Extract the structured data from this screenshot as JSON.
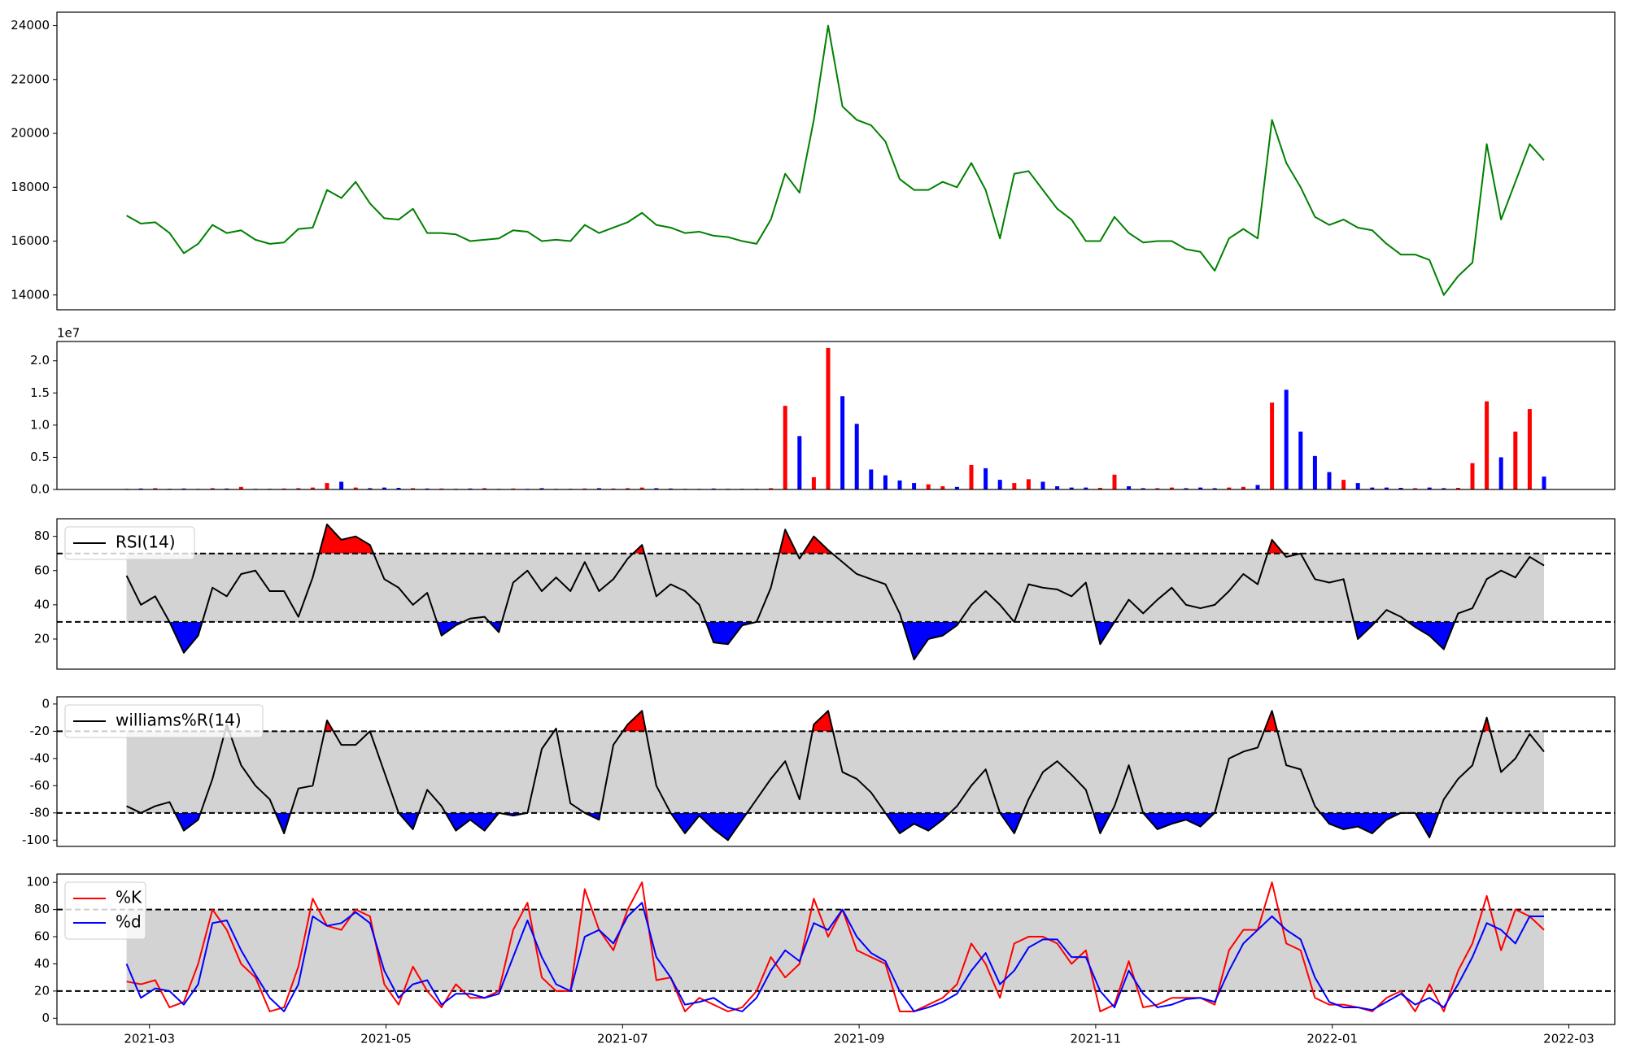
{
  "chart_data": [
    {
      "type": "line",
      "color": "green",
      "values": [
        16950,
        16650,
        16700,
        16300,
        15550,
        15900,
        16600,
        16300,
        16400,
        16050,
        15900,
        15950,
        16450,
        16500,
        17900,
        17600,
        18200,
        17400,
        16850,
        16800,
        17200,
        16300,
        16300,
        16250,
        16000,
        16050,
        16100,
        16400,
        16350,
        16000,
        16050,
        16000,
        16600,
        16300,
        16500,
        16700,
        17050,
        16600,
        16500,
        16300,
        16350,
        16200,
        16150,
        16000,
        15900,
        16800,
        18500,
        17800,
        20500,
        24000,
        21000,
        20500,
        20300,
        19700,
        18300,
        17900,
        17900,
        18200,
        18000,
        18900,
        17900,
        16100,
        18500,
        18600,
        17900,
        17200,
        16800,
        16000,
        16000,
        16900,
        16300,
        15950,
        16000,
        16000,
        15700,
        15600,
        14900,
        16100,
        16450,
        16100,
        20500,
        18900,
        18000,
        16900,
        16600,
        16800,
        16500,
        16400,
        15900,
        15500,
        15500,
        15300,
        14000,
        14700,
        15200,
        19600,
        16800,
        18200,
        19600,
        19000
      ],
      "ylim": [
        13450,
        24500
      ],
      "yticks": [
        14000,
        16000,
        18000,
        20000,
        22000,
        24000
      ]
    },
    {
      "type": "bar",
      "up_color": "red",
      "down_color": "blue",
      "offset_label": "1e7",
      "values": [
        100000,
        150000,
        200000,
        100000,
        150000,
        100000,
        200000,
        150000,
        400000,
        100000,
        100000,
        150000,
        200000,
        300000,
        1000000,
        1200000,
        300000,
        200000,
        300000,
        250000,
        200000,
        150000,
        150000,
        100000,
        150000,
        200000,
        100000,
        150000,
        100000,
        200000,
        100000,
        100000,
        150000,
        200000,
        150000,
        200000,
        300000,
        200000,
        150000,
        100000,
        100000,
        150000,
        100000,
        100000,
        100000,
        200000,
        13000000,
        8300000,
        1900000,
        22000000,
        14500000,
        10200000,
        3100000,
        2200000,
        1400000,
        1000000,
        800000,
        500000,
        400000,
        3800000,
        3300000,
        1500000,
        1000000,
        1600000,
        1200000,
        500000,
        300000,
        300000,
        250000,
        2300000,
        500000,
        200000,
        200000,
        300000,
        200000,
        300000,
        200000,
        300000,
        400000,
        700000,
        13500000,
        15500000,
        9000000,
        5200000,
        2700000,
        1500000,
        1000000,
        300000,
        300000,
        250000,
        200000,
        300000,
        200000,
        250000,
        4100000,
        13700000,
        5000000,
        9000000,
        12500000,
        2000000
      ],
      "ylim": [
        0,
        23000000
      ],
      "yticks": [
        {
          "value": 0,
          "label": "0.0"
        },
        {
          "value": 5000000,
          "label": "0.5"
        },
        {
          "value": 10000000,
          "label": "1.0"
        },
        {
          "value": 15000000,
          "label": "1.5"
        },
        {
          "value": 20000000,
          "label": "2.0"
        }
      ]
    },
    {
      "type": "line",
      "legend": "upper left",
      "levels": [
        30,
        70
      ],
      "band_color": "lightgray",
      "above_color": "red",
      "below_color": "blue",
      "series": [
        {
          "name": "RSI(14)",
          "color": "black",
          "values": [
            57,
            40,
            45,
            30,
            12,
            22,
            50,
            45,
            58,
            60,
            48,
            48,
            33,
            56,
            87,
            78,
            80,
            75,
            55,
            50,
            40,
            47,
            22,
            28,
            32,
            33,
            24,
            53,
            60,
            48,
            56,
            48,
            65,
            48,
            55,
            67,
            75,
            45,
            52,
            48,
            40,
            18,
            17,
            28,
            30,
            50,
            84,
            67,
            80,
            72,
            65,
            58,
            55,
            52,
            35,
            8,
            20,
            22,
            28,
            40,
            48,
            40,
            30,
            52,
            50,
            49,
            45,
            53,
            17,
            30,
            43,
            35,
            43,
            50,
            40,
            38,
            40,
            48,
            58,
            52,
            78,
            68,
            70,
            55,
            53,
            55,
            20,
            28,
            37,
            33,
            27,
            22,
            14,
            35,
            38,
            55,
            60,
            56,
            68,
            63
          ]
        }
      ],
      "ylim": [
        2.4,
        90.3
      ],
      "yticks": [
        20,
        40,
        60,
        80
      ]
    },
    {
      "type": "line",
      "legend": "upper left",
      "levels": [
        -80,
        -20
      ],
      "band_color": "lightgray",
      "above_color": "red",
      "below_color": "blue",
      "series": [
        {
          "name": "williams%R(14)",
          "color": "black",
          "values": [
            -75,
            -80,
            -75,
            -72,
            -93,
            -85,
            -55,
            -15,
            -45,
            -60,
            -70,
            -95,
            -62,
            -60,
            -12,
            -30,
            -30,
            -20,
            -50,
            -80,
            -92,
            -63,
            -75,
            -93,
            -85,
            -93,
            -80,
            -82,
            -80,
            -33,
            -18,
            -73,
            -80,
            -85,
            -30,
            -15,
            -5,
            -60,
            -80,
            -95,
            -82,
            -92,
            -100,
            -85,
            -70,
            -55,
            -42,
            -70,
            -15,
            -5,
            -50,
            -55,
            -65,
            -80,
            -95,
            -88,
            -93,
            -85,
            -75,
            -60,
            -48,
            -80,
            -95,
            -70,
            -50,
            -42,
            -52,
            -63,
            -95,
            -75,
            -45,
            -80,
            -92,
            -88,
            -85,
            -90,
            -80,
            -40,
            -35,
            -32,
            -5,
            -45,
            -48,
            -75,
            -88,
            -92,
            -90,
            -95,
            -85,
            -80,
            -80,
            -98,
            -70,
            -55,
            -45,
            -10,
            -50,
            -40,
            -22,
            -35
          ]
        }
      ],
      "ylim": [
        -104.6,
        5.3
      ],
      "yticks": [
        -100,
        -80,
        -60,
        -40,
        -20,
        0
      ]
    },
    {
      "type": "line",
      "legend": "upper left",
      "levels": [
        20,
        80
      ],
      "band_color": "lightgray",
      "series": [
        {
          "name": "%K",
          "color": "red",
          "values": [
            27,
            25,
            28,
            8,
            12,
            40,
            80,
            65,
            40,
            30,
            5,
            8,
            38,
            88,
            68,
            65,
            80,
            75,
            25,
            10,
            38,
            20,
            8,
            25,
            15,
            15,
            20,
            65,
            85,
            30,
            20,
            20,
            95,
            65,
            50,
            80,
            100,
            28,
            30,
            5,
            15,
            10,
            5,
            8,
            20,
            45,
            30,
            40,
            88,
            60,
            80,
            50,
            45,
            40,
            5,
            5,
            10,
            15,
            25,
            55,
            40,
            15,
            55,
            60,
            60,
            55,
            40,
            50,
            5,
            10,
            42,
            8,
            10,
            15,
            15,
            15,
            10,
            50,
            65,
            65,
            100,
            55,
            50,
            15,
            10,
            10,
            8,
            5,
            15,
            20,
            5,
            25,
            5,
            35,
            55,
            90,
            50,
            80,
            75,
            65
          ]
        },
        {
          "name": "%d",
          "color": "blue",
          "values": [
            40,
            15,
            22,
            20,
            10,
            25,
            70,
            72,
            50,
            32,
            15,
            5,
            25,
            75,
            68,
            70,
            78,
            70,
            35,
            15,
            25,
            28,
            10,
            18,
            18,
            15,
            18,
            45,
            72,
            45,
            25,
            20,
            60,
            65,
            55,
            75,
            85,
            45,
            30,
            10,
            12,
            15,
            8,
            5,
            15,
            35,
            50,
            42,
            70,
            65,
            80,
            60,
            48,
            42,
            20,
            5,
            8,
            12,
            18,
            35,
            48,
            25,
            35,
            52,
            58,
            58,
            45,
            45,
            20,
            8,
            35,
            18,
            8,
            10,
            14,
            15,
            12,
            35,
            55,
            65,
            75,
            65,
            58,
            30,
            12,
            8,
            8,
            6,
            12,
            18,
            10,
            15,
            8,
            25,
            45,
            70,
            65,
            55,
            75,
            75
          ]
        }
      ],
      "ylim": [
        -4.6,
        106.1
      ],
      "yticks": [
        0,
        20,
        40,
        60,
        80,
        100
      ],
      "xticks": [
        "2021-03",
        "2021-05",
        "2021-07",
        "2021-09",
        "2021-11",
        "2022-01",
        "2022-03"
      ]
    }
  ]
}
